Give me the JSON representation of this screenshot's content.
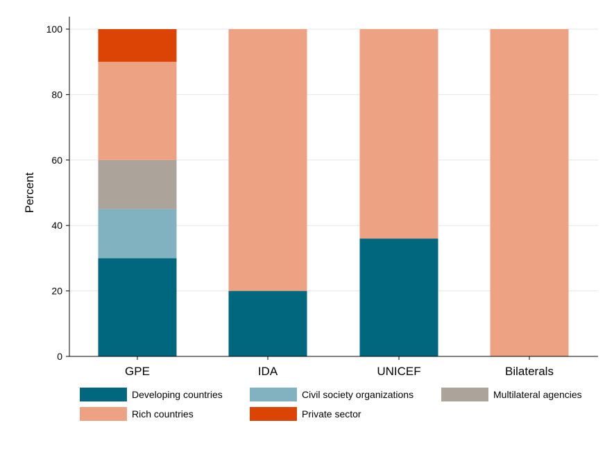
{
  "chart_data": {
    "type": "bar",
    "stacked": true,
    "categories": [
      "GPE",
      "IDA",
      "UNICEF",
      "Bilaterals"
    ],
    "series": [
      {
        "name": "Developing countries",
        "color": "#00677e",
        "values": [
          30,
          20,
          36,
          0
        ]
      },
      {
        "name": "Civil society organizations",
        "color": "#81b2c0",
        "values": [
          15,
          0,
          0,
          0
        ]
      },
      {
        "name": "Multilateral agencies",
        "color": "#aca39a",
        "values": [
          15,
          0,
          0,
          0
        ]
      },
      {
        "name": "Rich countries",
        "color": "#eda283",
        "values": [
          30,
          80,
          64,
          100
        ]
      },
      {
        "name": "Private sector",
        "color": "#dc4405",
        "values": [
          10,
          0,
          0,
          0
        ]
      }
    ],
    "ylabel": "Percent",
    "xlabel": "",
    "ylim": [
      0,
      100
    ],
    "yticks": [
      0,
      20,
      40,
      60,
      80,
      100
    ],
    "grid": true,
    "legend_position": "bottom"
  }
}
